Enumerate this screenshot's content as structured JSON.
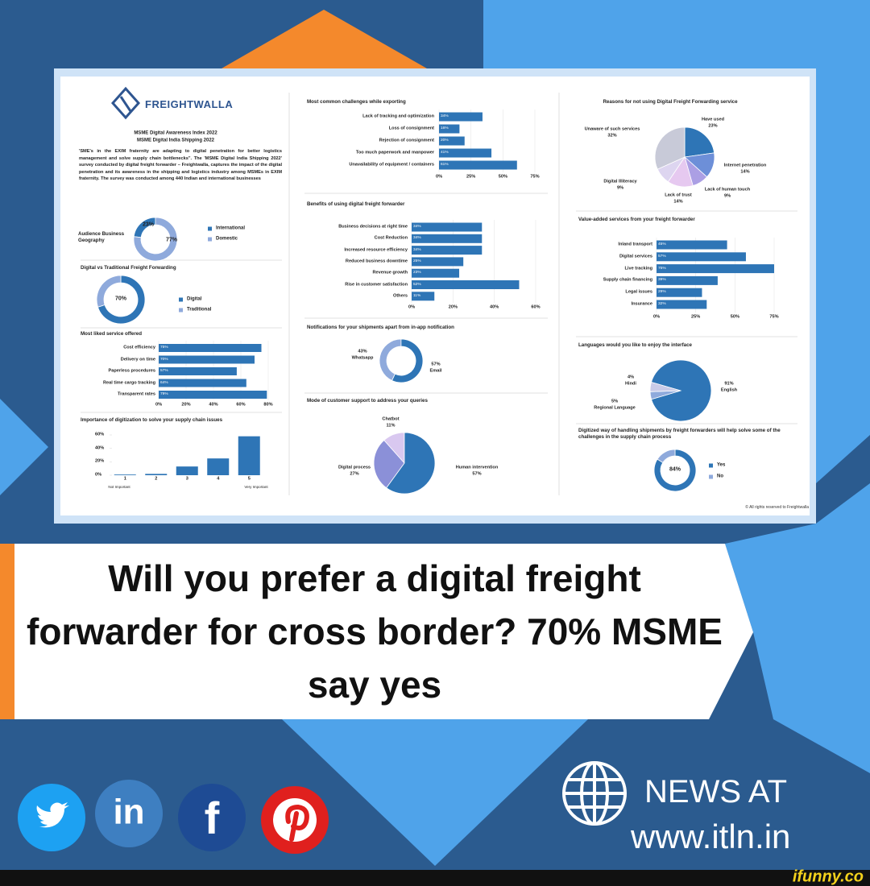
{
  "header": {
    "logo": "FREIGHTWALLA",
    "index": "MSME Digital Awareness Index 2022",
    "report": "MSME Digital India Shipping 2022",
    "description": "'SME's in the EXIM fraternity are adapting to digital penetration for better logistics management and solve supply chain bottlenecks\". The 'MSME Digital India Shipping 2022' survey conducted by digital freight forwarder – Freightwalla, captures the impact of the digital penetration and its awareness in the shipping and logistics industry among MSMEs in EXIM fraternity. The survey was conducted among 440 Indian and international businesses"
  },
  "copyright": "© All rights reserved to Freightwalla",
  "headline": "Will you prefer a digital freight forwarder for cross border? 70% MSME say yes",
  "social": {
    "linkedin": "in",
    "facebook": "f"
  },
  "news": {
    "label": "NEWS AT",
    "url": "www.itln.in"
  },
  "watermark": "ifunny.co",
  "chart_data": [
    {
      "type": "donut",
      "title": "Audience Business Geography",
      "labels": [
        "International",
        "Domestic"
      ],
      "values": [
        23,
        77
      ],
      "value_labels": [
        "23%",
        "77%"
      ],
      "colors": [
        "#2e75b6",
        "#8faadc"
      ],
      "legend": true
    },
    {
      "type": "donut",
      "title": "Digital vs Traditional Freight Forwarding",
      "labels": [
        "Digital",
        "Traditional"
      ],
      "values": [
        70,
        30
      ],
      "value_labels": [
        "70%",
        null
      ],
      "colors": [
        "#2e75b6",
        "#8faadc"
      ],
      "legend": true
    },
    {
      "type": "bar",
      "orientation": "horizontal",
      "title": "Most liked service offered",
      "categories": [
        "Cost efficiency",
        "Delivery on time",
        "Paperless procedures",
        "Real time cargo tracking",
        "Transparent rates"
      ],
      "values": [
        75,
        70,
        57,
        64,
        79
      ],
      "value_labels": [
        "75%",
        "70%",
        "57%",
        "64%",
        "79%"
      ],
      "color": "#2e75b6",
      "xlim": [
        0,
        80
      ],
      "xticks": [
        {
          "value": 0,
          "label": "0%"
        },
        {
          "value": 20,
          "label": "20%"
        },
        {
          "value": 40,
          "label": "40%"
        },
        {
          "value": 60,
          "label": "60%"
        },
        {
          "value": 80,
          "label": "80%"
        }
      ]
    },
    {
      "type": "bar",
      "orientation": "vertical",
      "title": "Importance of digitization to solve your supply chain issues",
      "categories": [
        "1",
        "2",
        "3",
        "4",
        "5"
      ],
      "values": [
        1,
        2,
        13,
        25,
        58
      ],
      "annotations": [
        "Not Important",
        "Very Important"
      ],
      "color": "#2e75b6",
      "ylim": [
        0,
        60
      ],
      "yticks": [
        {
          "value": 0,
          "label": "0%"
        },
        {
          "value": 20,
          "label": "20%"
        },
        {
          "value": 40,
          "label": "40%"
        },
        {
          "value": 60,
          "label": "60%"
        }
      ]
    },
    {
      "type": "bar",
      "orientation": "horizontal",
      "title": "Most common challenges while exporting",
      "categories": [
        "Lack of tracking and optimization",
        "Loss of consignment",
        "Rejection of consignment",
        "Too much paperwork and manpower",
        "Unavailability of equipment / containers"
      ],
      "values": [
        34,
        16,
        20,
        41,
        61
      ],
      "value_labels": [
        "34%",
        "16%",
        "20%",
        "41%",
        "61%"
      ],
      "color": "#2e75b6",
      "xlim": [
        0,
        75
      ],
      "xticks": [
        {
          "value": 0,
          "label": "0%"
        },
        {
          "value": 25,
          "label": "25%"
        },
        {
          "value": 50,
          "label": "50%"
        },
        {
          "value": 75,
          "label": "75%"
        }
      ]
    },
    {
      "type": "bar",
      "orientation": "horizontal",
      "title": "Benefits of using digital freight forwarder",
      "categories": [
        "Business decisions at right time",
        "Cost Reduction",
        "Increased resource efficiency",
        "Reduced business downtime",
        "Revenue growth",
        "Rise in customer satisfaction",
        "Others"
      ],
      "values": [
        34,
        34,
        34,
        25,
        23,
        52,
        11
      ],
      "value_labels": [
        "34%",
        "34%",
        "34%",
        "25%",
        "23%",
        "52%",
        "11%"
      ],
      "color": "#2e75b6",
      "xlim": [
        0,
        60
      ],
      "xticks": [
        {
          "value": 0,
          "label": "0%"
        },
        {
          "value": 20,
          "label": "20%"
        },
        {
          "value": 40,
          "label": "40%"
        },
        {
          "value": 60,
          "label": "60%"
        }
      ]
    },
    {
      "type": "donut",
      "title": "Notifications for your shipments apart from in-app notification",
      "labels": [
        "Whatsapp",
        "Email"
      ],
      "values": [
        43,
        57
      ],
      "value_labels": [
        "43%",
        "57%"
      ],
      "colors": [
        "#8faadc",
        "#2e75b6"
      ]
    },
    {
      "type": "pie",
      "title": "Mode of customer support to address your queries",
      "labels": [
        "Chatbot",
        "Digital process",
        "Human intervention"
      ],
      "values": [
        11,
        27,
        57
      ],
      "value_labels": [
        "11%",
        "27%",
        "57%"
      ],
      "colors": [
        "#d9c8f0",
        "#8b90d8",
        "#2e75b6"
      ]
    },
    {
      "type": "pie",
      "title": "Reasons for not using Digital Freight Forwarding service",
      "labels": [
        "Have used",
        "Internet penetration",
        "Lack of human touch",
        "Lack of trust",
        "Digital Illiteracy",
        "Unaware of such services"
      ],
      "values": [
        23,
        14,
        9,
        14,
        9,
        32
      ],
      "value_labels": [
        "23%",
        "14%",
        "9%",
        "14%",
        "9%",
        "32%"
      ],
      "colors": [
        "#2e75b6",
        "#6d8fd8",
        "#ab9fe4",
        "#e6c9f0",
        "#ddd5f0",
        "#c8cad8"
      ]
    },
    {
      "type": "bar",
      "orientation": "horizontal",
      "title": "Value-added services from your freight forwarder",
      "categories": [
        "Inland transport",
        "Digital services",
        "Live tracking",
        "Supply chain financing",
        "Legal issues",
        "Insurance"
      ],
      "values": [
        45,
        57,
        75,
        39,
        29,
        32
      ],
      "value_labels": [
        "45%",
        "57%",
        "75%",
        "39%",
        "29%",
        "32%"
      ],
      "color": "#2e75b6",
      "xlim": [
        0,
        75
      ],
      "xticks": [
        {
          "value": 0,
          "label": "0%"
        },
        {
          "value": 25,
          "label": "25%"
        },
        {
          "value": 50,
          "label": "50%"
        },
        {
          "value": 75,
          "label": "75%"
        }
      ]
    },
    {
      "type": "pie",
      "title": "Languages would you like to enjoy the interface",
      "labels": [
        "English",
        "Hindi",
        "Regional Language"
      ],
      "values": [
        91,
        4,
        5
      ],
      "value_labels": [
        "91%",
        "4%",
        "5%"
      ],
      "colors": [
        "#2e75b6",
        "#8faadc",
        "#c9cbe8"
      ]
    },
    {
      "type": "donut",
      "title": "Digitized way of handling shipments by freight forwarders will help solve some of the challenges in the supply chain process",
      "labels": [
        "Yes",
        "No"
      ],
      "values": [
        84,
        16
      ],
      "value_labels": [
        "84%",
        null
      ],
      "colors": [
        "#2e75b6",
        "#8faadc"
      ],
      "legend": true
    }
  ]
}
